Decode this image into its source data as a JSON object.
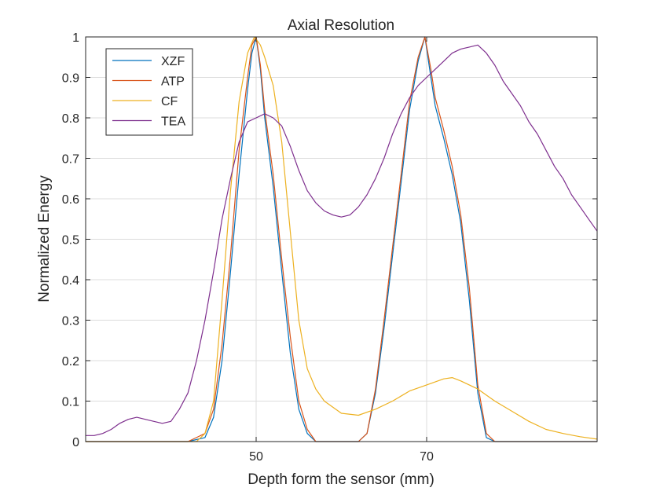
{
  "chart_data": {
    "type": "line",
    "title": "Axial Resolution",
    "xlabel": "Depth form the sensor (mm)",
    "ylabel": "Normalized Energy",
    "xlim": [
      30,
      90
    ],
    "ylim": [
      0,
      1
    ],
    "xticks": [
      50,
      70
    ],
    "yticks": [
      0,
      0.1,
      0.2,
      0.3,
      0.4,
      0.5,
      0.6,
      0.7,
      0.8,
      0.9,
      1
    ],
    "ytick_labels": [
      "0",
      "0.1",
      "0.2",
      "0.3",
      "0.4",
      "0.5",
      "0.6",
      "0.7",
      "0.8",
      "0.9",
      "1"
    ],
    "grid": true,
    "legend_position": "top-left",
    "series": [
      {
        "name": "XZF",
        "color": "#0072BD",
        "points": [
          [
            30,
            0
          ],
          [
            42,
            0
          ],
          [
            44,
            0.01
          ],
          [
            45,
            0.06
          ],
          [
            46,
            0.2
          ],
          [
            47,
            0.42
          ],
          [
            48,
            0.66
          ],
          [
            49,
            0.87
          ],
          [
            49.5,
            0.96
          ],
          [
            50,
            1.0
          ],
          [
            50.5,
            0.92
          ],
          [
            51,
            0.8
          ],
          [
            52,
            0.63
          ],
          [
            53,
            0.42
          ],
          [
            54,
            0.22
          ],
          [
            55,
            0.08
          ],
          [
            56,
            0.02
          ],
          [
            57,
            0
          ],
          [
            62,
            0
          ],
          [
            63,
            0.02
          ],
          [
            64,
            0.12
          ],
          [
            65,
            0.28
          ],
          [
            66,
            0.46
          ],
          [
            67,
            0.64
          ],
          [
            68,
            0.82
          ],
          [
            69,
            0.94
          ],
          [
            69.8,
            1.0
          ],
          [
            70.5,
            0.9
          ],
          [
            71,
            0.83
          ],
          [
            72,
            0.75
          ],
          [
            73,
            0.66
          ],
          [
            74,
            0.54
          ],
          [
            75,
            0.35
          ],
          [
            76,
            0.12
          ],
          [
            77,
            0.01
          ],
          [
            78,
            0
          ],
          [
            90,
            0
          ]
        ]
      },
      {
        "name": "ATP",
        "color": "#D95319",
        "points": [
          [
            30,
            0
          ],
          [
            42,
            0
          ],
          [
            44,
            0.02
          ],
          [
            45,
            0.08
          ],
          [
            46,
            0.24
          ],
          [
            47,
            0.46
          ],
          [
            48,
            0.72
          ],
          [
            49,
            0.9
          ],
          [
            49.5,
            0.98
          ],
          [
            50,
            1.0
          ],
          [
            50.5,
            0.93
          ],
          [
            51,
            0.82
          ],
          [
            52,
            0.66
          ],
          [
            53,
            0.45
          ],
          [
            54,
            0.26
          ],
          [
            55,
            0.1
          ],
          [
            56,
            0.03
          ],
          [
            57,
            0
          ],
          [
            62,
            0
          ],
          [
            63,
            0.02
          ],
          [
            64,
            0.13
          ],
          [
            65,
            0.3
          ],
          [
            66,
            0.48
          ],
          [
            67,
            0.66
          ],
          [
            68,
            0.84
          ],
          [
            69,
            0.95
          ],
          [
            69.8,
            1.0
          ],
          [
            70.5,
            0.92
          ],
          [
            71,
            0.85
          ],
          [
            72,
            0.77
          ],
          [
            73,
            0.68
          ],
          [
            74,
            0.56
          ],
          [
            75,
            0.38
          ],
          [
            76,
            0.14
          ],
          [
            77,
            0.02
          ],
          [
            78,
            0
          ],
          [
            90,
            0
          ]
        ]
      },
      {
        "name": "CF",
        "color": "#EDB120",
        "points": [
          [
            30,
            0
          ],
          [
            43,
            0
          ],
          [
            44,
            0.02
          ],
          [
            45,
            0.1
          ],
          [
            46,
            0.35
          ],
          [
            47,
            0.62
          ],
          [
            48,
            0.84
          ],
          [
            49,
            0.96
          ],
          [
            49.8,
            1.0
          ],
          [
            50.5,
            0.98
          ],
          [
            51,
            0.95
          ],
          [
            52,
            0.88
          ],
          [
            53,
            0.74
          ],
          [
            54,
            0.52
          ],
          [
            55,
            0.3
          ],
          [
            56,
            0.18
          ],
          [
            57,
            0.13
          ],
          [
            58,
            0.1
          ],
          [
            60,
            0.07
          ],
          [
            62,
            0.065
          ],
          [
            64,
            0.08
          ],
          [
            66,
            0.1
          ],
          [
            68,
            0.125
          ],
          [
            70,
            0.14
          ],
          [
            72,
            0.155
          ],
          [
            73,
            0.158
          ],
          [
            74,
            0.15
          ],
          [
            76,
            0.13
          ],
          [
            78,
            0.1
          ],
          [
            80,
            0.075
          ],
          [
            82,
            0.05
          ],
          [
            84,
            0.03
          ],
          [
            86,
            0.02
          ],
          [
            88,
            0.012
          ],
          [
            90,
            0.006
          ]
        ]
      },
      {
        "name": "TEA",
        "color": "#7E2F8E",
        "points": [
          [
            30,
            0.015
          ],
          [
            31,
            0.015
          ],
          [
            32,
            0.02
          ],
          [
            33,
            0.03
          ],
          [
            34,
            0.045
          ],
          [
            35,
            0.055
          ],
          [
            36,
            0.06
          ],
          [
            37,
            0.055
          ],
          [
            38,
            0.05
          ],
          [
            39,
            0.045
          ],
          [
            40,
            0.05
          ],
          [
            41,
            0.08
          ],
          [
            42,
            0.12
          ],
          [
            43,
            0.2
          ],
          [
            44,
            0.3
          ],
          [
            45,
            0.42
          ],
          [
            46,
            0.55
          ],
          [
            47,
            0.65
          ],
          [
            48,
            0.74
          ],
          [
            49,
            0.79
          ],
          [
            50,
            0.8
          ],
          [
            51,
            0.81
          ],
          [
            52,
            0.8
          ],
          [
            53,
            0.78
          ],
          [
            54,
            0.73
          ],
          [
            55,
            0.67
          ],
          [
            56,
            0.62
          ],
          [
            57,
            0.59
          ],
          [
            58,
            0.57
          ],
          [
            59,
            0.56
          ],
          [
            60,
            0.555
          ],
          [
            61,
            0.56
          ],
          [
            62,
            0.58
          ],
          [
            63,
            0.61
          ],
          [
            64,
            0.65
          ],
          [
            65,
            0.7
          ],
          [
            66,
            0.76
          ],
          [
            67,
            0.81
          ],
          [
            68,
            0.85
          ],
          [
            69,
            0.88
          ],
          [
            70,
            0.9
          ],
          [
            71,
            0.92
          ],
          [
            72,
            0.94
          ],
          [
            73,
            0.96
          ],
          [
            74,
            0.97
          ],
          [
            75,
            0.975
          ],
          [
            76,
            0.98
          ],
          [
            77,
            0.96
          ],
          [
            78,
            0.93
          ],
          [
            79,
            0.89
          ],
          [
            80,
            0.86
          ],
          [
            81,
            0.83
          ],
          [
            82,
            0.79
          ],
          [
            83,
            0.76
          ],
          [
            84,
            0.72
          ],
          [
            85,
            0.68
          ],
          [
            86,
            0.65
          ],
          [
            87,
            0.61
          ],
          [
            88,
            0.58
          ],
          [
            89,
            0.55
          ],
          [
            90,
            0.52
          ]
        ]
      }
    ]
  }
}
